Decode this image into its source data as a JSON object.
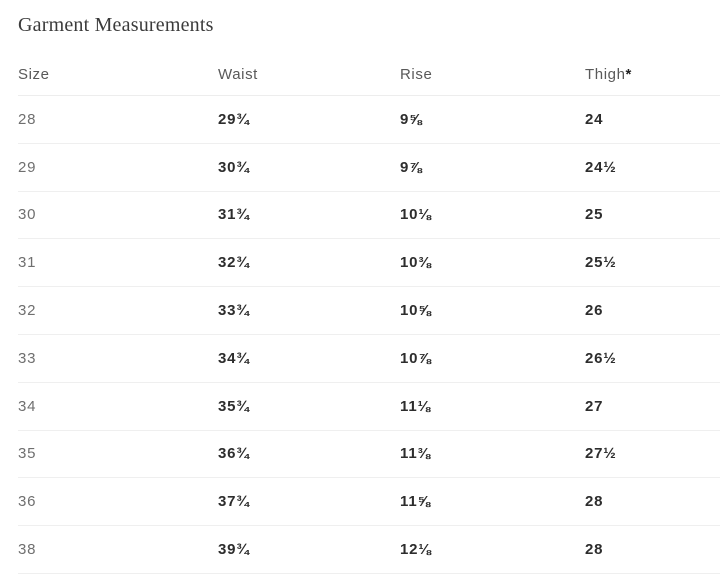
{
  "page": {
    "title": "Garment Measurements"
  },
  "table": {
    "columns": [
      {
        "label": "Size"
      },
      {
        "label": "Waist"
      },
      {
        "label": "Rise"
      },
      {
        "label": "Thigh",
        "suffix": "*"
      }
    ],
    "rows": [
      {
        "size": "28",
        "waist": "29¾",
        "rise": "9⅝",
        "thigh": "24"
      },
      {
        "size": "29",
        "waist": "30¾",
        "rise": "9⅞",
        "thigh": "24½"
      },
      {
        "size": "30",
        "waist": "31¾",
        "rise": "10⅛",
        "thigh": "25"
      },
      {
        "size": "31",
        "waist": "32¾",
        "rise": "10⅜",
        "thigh": "25½"
      },
      {
        "size": "32",
        "waist": "33¾",
        "rise": "10⅝",
        "thigh": "26"
      },
      {
        "size": "33",
        "waist": "34¾",
        "rise": "10⅞",
        "thigh": "26½"
      },
      {
        "size": "34",
        "waist": "35¾",
        "rise": "11⅛",
        "thigh": "27"
      },
      {
        "size": "35",
        "waist": "36¾",
        "rise": "11⅜",
        "thigh": "27½"
      },
      {
        "size": "36",
        "waist": "37¾",
        "rise": "11⅝",
        "thigh": "28"
      },
      {
        "size": "38",
        "waist": "39¾",
        "rise": "12⅛",
        "thigh": "28"
      }
    ]
  },
  "colors": {
    "divider": "#efefef",
    "title_text": "#3b3b3b",
    "header_text": "#595959",
    "size_text": "#6f6f6f",
    "value_text": "#2d2d2d"
  }
}
